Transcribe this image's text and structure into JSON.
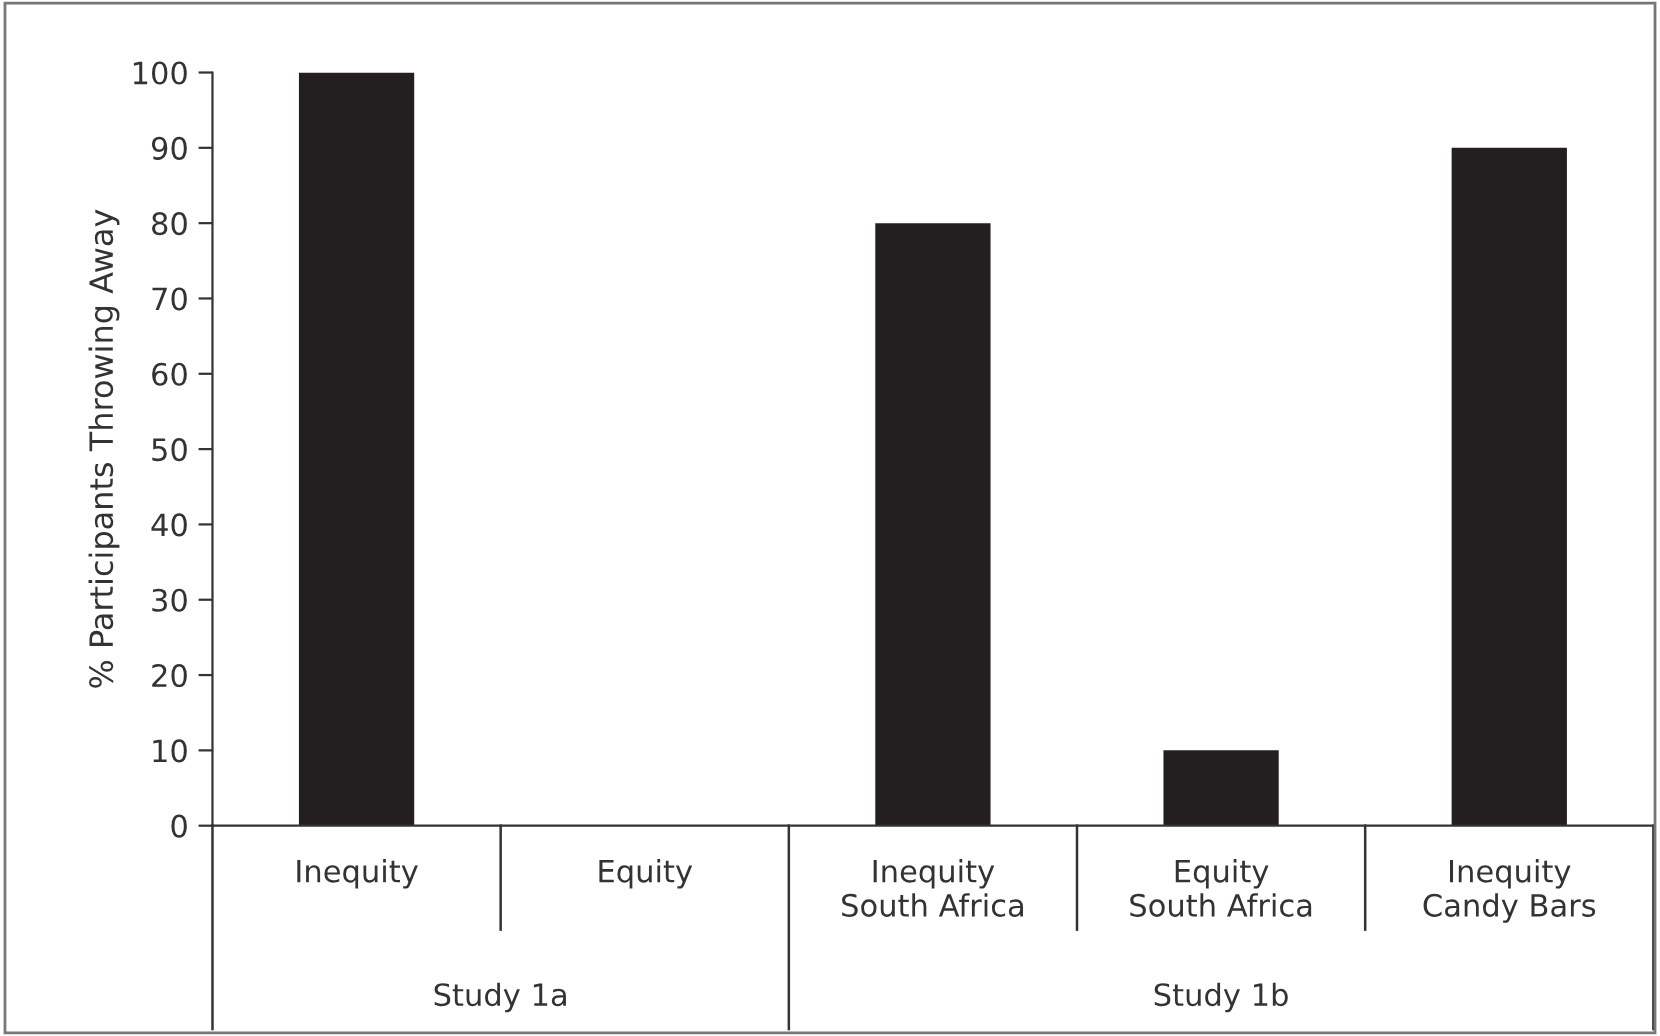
{
  "chart_data": {
    "type": "bar",
    "categories": [
      "Inequity",
      "Equity",
      "Inequity\nSouth Africa",
      "Equity\nSouth Africa",
      "Inequity\nCandy Bars"
    ],
    "values": [
      100,
      0,
      80,
      10,
      90
    ],
    "color": "#231f20",
    "ylabel": "% Participants Throwing Away",
    "ylim": [
      0,
      100
    ],
    "yticks": [
      0,
      10,
      20,
      30,
      40,
      50,
      60,
      70,
      80,
      90,
      100
    ],
    "annotations": [
      "Study 1a",
      "Study 1b"
    ],
    "grid": false,
    "legend": false
  }
}
